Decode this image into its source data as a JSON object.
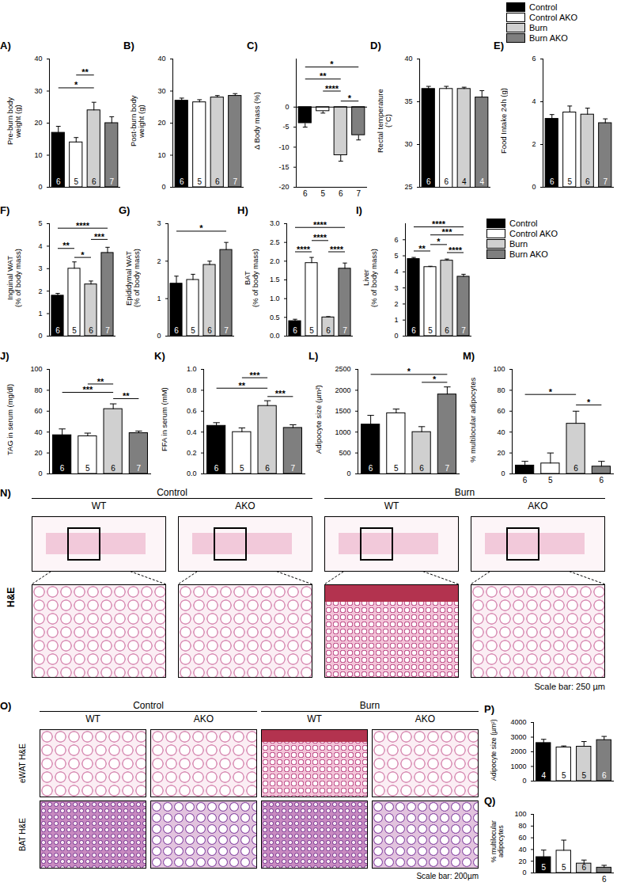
{
  "chart_data": [
    {
      "type": "bar",
      "title": "A)",
      "ylabel": "Pre-burn body\nweight (g)",
      "categories": [
        "Control",
        "Control AKO",
        "Burn",
        "Burn AKO"
      ],
      "colors": [
        "#000000",
        "#ffffff",
        "#d0d0d0",
        "#7f7f7f"
      ],
      "values": [
        17,
        14,
        24,
        20
      ],
      "errors": [
        2,
        1.5,
        2.5,
        2
      ],
      "n": [
        6,
        5,
        6,
        7
      ],
      "ylim": [
        0,
        40
      ],
      "yticks": [
        0,
        10,
        20,
        30,
        40
      ],
      "annotations": [
        {
          "from": 0,
          "to": 2,
          "y": 31,
          "text": "*"
        },
        {
          "from": 1,
          "to": 2,
          "y": 35,
          "text": "**"
        }
      ],
      "tick_labels": "y"
    },
    {
      "type": "bar",
      "title": "B)",
      "ylabel": "Post-burn body\nweight (g)",
      "categories": [
        "Control",
        "Control AKO",
        "Burn",
        "Burn AKO"
      ],
      "colors": [
        "#000000",
        "#ffffff",
        "#d0d0d0",
        "#7f7f7f"
      ],
      "values": [
        27,
        26.5,
        28,
        28.5
      ],
      "errors": [
        0.8,
        0.8,
        0.6,
        0.7
      ],
      "n": [
        6,
        5,
        6,
        7
      ],
      "ylim": [
        0,
        40
      ],
      "yticks": [
        0,
        10,
        20,
        30,
        40
      ],
      "annotations": [],
      "tick_labels": "y"
    },
    {
      "type": "bar",
      "title": "C)",
      "ylabel": "Δ Body mass (%)",
      "categories": [
        "Control",
        "Control AKO",
        "Burn",
        "Burn AKO"
      ],
      "colors": [
        "#000000",
        "#ffffff",
        "#d0d0d0",
        "#7f7f7f"
      ],
      "values": [
        -4,
        -1,
        -12,
        -7
      ],
      "errors": [
        1,
        0.5,
        1.5,
        1.2
      ],
      "n": [
        6,
        5,
        6,
        7
      ],
      "ylim": [
        -20,
        12
      ],
      "yticks": [
        -20,
        -15,
        -10,
        -5,
        0
      ],
      "annotations": [
        {
          "from": 0,
          "to": 3,
          "y": 10,
          "text": "*"
        },
        {
          "from": 0,
          "to": 2,
          "y": 7,
          "text": "**"
        },
        {
          "from": 1,
          "to": 2,
          "y": 4,
          "text": "****"
        },
        {
          "from": 2,
          "to": 3,
          "y": 1.5,
          "text": "*"
        }
      ],
      "tick_labels": "y"
    },
    {
      "type": "bar",
      "title": "D)",
      "ylabel": "Rectal temperature\n(°C)",
      "categories": [
        "Control",
        "Control AKO",
        "Burn",
        "Burn AKO"
      ],
      "colors": [
        "#000000",
        "#ffffff",
        "#d0d0d0",
        "#7f7f7f"
      ],
      "values": [
        36.5,
        36.5,
        36.5,
        35.5
      ],
      "errors": [
        0.3,
        0.3,
        0.2,
        0.8
      ],
      "n": [
        6,
        6,
        4,
        4
      ],
      "ylim": [
        25,
        40
      ],
      "yticks": [
        25,
        30,
        35,
        40
      ],
      "annotations": [],
      "tick_labels": "y"
    },
    {
      "type": "bar",
      "title": "E)",
      "ylabel": "Food Intake 24h (g)",
      "categories": [
        "Control",
        "Control AKO",
        "Burn",
        "Burn AKO"
      ],
      "colors": [
        "#000000",
        "#ffffff",
        "#d0d0d0",
        "#7f7f7f"
      ],
      "values": [
        3.2,
        3.5,
        3.4,
        3.0
      ],
      "errors": [
        0.2,
        0.3,
        0.3,
        0.2
      ],
      "n": [
        6,
        5,
        6,
        7
      ],
      "ylim": [
        0,
        6
      ],
      "yticks": [
        0,
        2,
        4,
        6
      ],
      "annotations": [],
      "tick_labels": "y"
    },
    {
      "type": "bar",
      "title": "F)",
      "ylabel": "Inguinal WAT\n(% of body mass)",
      "categories": [
        "Control",
        "Control AKO",
        "Burn",
        "Burn AKO"
      ],
      "colors": [
        "#000000",
        "#ffffff",
        "#d0d0d0",
        "#7f7f7f"
      ],
      "values": [
        1.8,
        3.0,
        2.3,
        3.7
      ],
      "errors": [
        0.1,
        0.3,
        0.15,
        0.25
      ],
      "n": [
        6,
        5,
        6,
        7
      ],
      "ylim": [
        0,
        5
      ],
      "yticks": [
        0,
        1,
        2,
        3,
        4,
        5
      ],
      "annotations": [
        {
          "from": 0,
          "to": 3,
          "y": 4.8,
          "text": "****"
        },
        {
          "from": 0,
          "to": 1,
          "y": 3.9,
          "text": "**"
        },
        {
          "from": 1,
          "to": 2,
          "y": 3.5,
          "text": "*"
        },
        {
          "from": 2,
          "to": 3,
          "y": 4.3,
          "text": "***"
        }
      ],
      "tick_labels": "y"
    },
    {
      "type": "bar",
      "title": "G)",
      "ylabel": "Epididymal WAT\n(% of body mass)",
      "categories": [
        "Control",
        "Control AKO",
        "Burn",
        "Burn AKO"
      ],
      "colors": [
        "#000000",
        "#ffffff",
        "#d0d0d0",
        "#7f7f7f"
      ],
      "values": [
        1.4,
        1.5,
        1.9,
        2.3
      ],
      "errors": [
        0.2,
        0.15,
        0.1,
        0.2
      ],
      "n": [
        6,
        5,
        6,
        7
      ],
      "ylim": [
        0,
        3
      ],
      "yticks": [
        0,
        1,
        2,
        3
      ],
      "annotations": [
        {
          "from": 0,
          "to": 3,
          "y": 2.8,
          "text": "*"
        }
      ],
      "tick_labels": "y"
    },
    {
      "type": "bar",
      "title": "H)",
      "ylabel": "BAT\n(% of body mass)",
      "categories": [
        "Control",
        "Control AKO",
        "Burn",
        "Burn AKO"
      ],
      "colors": [
        "#000000",
        "#ffffff",
        "#d0d0d0",
        "#7f7f7f"
      ],
      "values": [
        0.4,
        1.95,
        0.5,
        1.8
      ],
      "errors": [
        0.05,
        0.15,
        0.02,
        0.15
      ],
      "n": [
        6,
        5,
        6,
        7
      ],
      "ylim": [
        0,
        3
      ],
      "yticks": [
        {
          "value": 0,
          "label": "0.0"
        },
        0.5,
        {
          "value": 1,
          "label": "1.0"
        },
        1.5,
        {
          "value": 2,
          "label": "2.0"
        },
        2.5,
        {
          "value": 3,
          "label": "3.0"
        }
      ],
      "annotations": [
        {
          "from": 0,
          "to": 3,
          "y": 2.9,
          "text": "****"
        },
        {
          "from": 0,
          "to": 1,
          "y": 2.25,
          "text": "****"
        },
        {
          "from": 1,
          "to": 2,
          "y": 2.55,
          "text": "****"
        },
        {
          "from": 2,
          "to": 3,
          "y": 2.25,
          "text": "****"
        }
      ],
      "tick_labels": "y"
    },
    {
      "type": "bar",
      "title": "I)",
      "ylabel": "Liver\n(% of body mass)",
      "categories": [
        "Control",
        "Control AKO",
        "Burn",
        "Burn AKO"
      ],
      "colors": [
        "#000000",
        "#ffffff",
        "#d0d0d0",
        "#7f7f7f"
      ],
      "values": [
        4.8,
        4.3,
        4.7,
        3.7
      ],
      "errors": [
        0.1,
        0.05,
        0.1,
        0.15
      ],
      "n": [
        6,
        5,
        6,
        7
      ],
      "ylim": [
        0,
        7
      ],
      "yticks": [
        0,
        1,
        2,
        3,
        4,
        5,
        6
      ],
      "annotations": [
        {
          "from": 0,
          "to": 3,
          "y": 6.8,
          "text": "****"
        },
        {
          "from": 1,
          "to": 3,
          "y": 6.3,
          "text": "***"
        },
        {
          "from": 0,
          "to": 1,
          "y": 5.3,
          "text": "**"
        },
        {
          "from": 1,
          "to": 2,
          "y": 5.7,
          "text": "*"
        },
        {
          "from": 2,
          "to": 3,
          "y": 5.2,
          "text": "****"
        }
      ],
      "tick_labels": "y"
    },
    {
      "type": "bar",
      "title": "J)",
      "ylabel": "TAG in serum (mg/dl)",
      "categories": [
        "Control",
        "Control AKO",
        "Burn",
        "Burn AKO"
      ],
      "colors": [
        "#000000",
        "#ffffff",
        "#d0d0d0",
        "#7f7f7f"
      ],
      "values": [
        37,
        36,
        62,
        39
      ],
      "errors": [
        6,
        3,
        5,
        2
      ],
      "n": [
        6,
        5,
        6,
        7
      ],
      "ylim": [
        0,
        100
      ],
      "yticks": [
        0,
        20,
        40,
        60,
        80,
        100
      ],
      "annotations": [
        {
          "from": 1,
          "to": 2,
          "y": 86,
          "text": "**"
        },
        {
          "from": 0,
          "to": 2,
          "y": 78,
          "text": "***"
        },
        {
          "from": 2,
          "to": 3,
          "y": 72,
          "text": "**"
        }
      ],
      "tick_labels": "y"
    },
    {
      "type": "bar",
      "title": "K)",
      "ylabel": "FFA in serum (mM)",
      "categories": [
        "Control",
        "Control AKO",
        "Burn",
        "Burn AKO"
      ],
      "colors": [
        "#000000",
        "#ffffff",
        "#d0d0d0",
        "#7f7f7f"
      ],
      "values": [
        0.46,
        0.4,
        0.65,
        0.44
      ],
      "errors": [
        0.03,
        0.04,
        0.05,
        0.03
      ],
      "n": [
        6,
        5,
        6,
        7
      ],
      "ylim": [
        0,
        1
      ],
      "yticks": [
        {
          "value": 0,
          "label": "0.0"
        },
        0.2,
        0.4,
        0.6,
        0.8,
        {
          "value": 1,
          "label": "1.0"
        }
      ],
      "annotations": [
        {
          "from": 1,
          "to": 2,
          "y": 0.92,
          "text": "***"
        },
        {
          "from": 0,
          "to": 2,
          "y": 0.82,
          "text": "**"
        },
        {
          "from": 2,
          "to": 3,
          "y": 0.74,
          "text": "***"
        }
      ],
      "tick_labels": "y"
    },
    {
      "type": "bar",
      "title": "L)",
      "ylabel": "Adipocyte size (µm²)",
      "categories": [
        "Control",
        "Control AKO",
        "Burn",
        "Burn AKO"
      ],
      "colors": [
        "#000000",
        "#ffffff",
        "#d0d0d0",
        "#7f7f7f"
      ],
      "values": [
        1180,
        1450,
        1000,
        1900
      ],
      "errors": [
        220,
        100,
        130,
        180
      ],
      "n": [
        6,
        5,
        6,
        7
      ],
      "ylim": [
        0,
        2500
      ],
      "yticks": [
        0,
        500,
        1000,
        1500,
        2000,
        2500
      ],
      "annotations": [
        {
          "from": 0,
          "to": 3,
          "y": 2380,
          "text": "*"
        },
        {
          "from": 2,
          "to": 3,
          "y": 2190,
          "text": "*"
        }
      ],
      "tick_labels": "y"
    },
    {
      "type": "bar",
      "title": "M)",
      "ylabel": "% multilocular adipocytes",
      "categories": [
        "Control",
        "Control AKO",
        "Burn",
        "Burn AKO"
      ],
      "colors": [
        "#000000",
        "#ffffff",
        "#d0d0d0",
        "#7f7f7f"
      ],
      "values": [
        8,
        10,
        48,
        7
      ],
      "errors": [
        4,
        10,
        12,
        5
      ],
      "n": [
        6,
        5,
        6,
        6
      ],
      "ylim": [
        0,
        100
      ],
      "yticks": [
        0,
        20,
        40,
        60,
        80,
        100
      ],
      "annotations": [
        {
          "from": 0,
          "to": 2,
          "y": 76,
          "text": "*"
        },
        {
          "from": 2,
          "to": 3,
          "y": 66,
          "text": "*"
        }
      ],
      "tick_labels": "y"
    },
    {
      "type": "bar",
      "title": "P)",
      "ylabel": "Adipocyte size (µm²)",
      "categories": [
        "Control",
        "Control AKO",
        "Burn",
        "Burn AKO"
      ],
      "colors": [
        "#000000",
        "#ffffff",
        "#d0d0d0",
        "#7f7f7f"
      ],
      "values": [
        2600,
        2300,
        2350,
        2800
      ],
      "errors": [
        250,
        100,
        350,
        250
      ],
      "n": [
        4,
        5,
        5,
        6
      ],
      "ylim": [
        0,
        4000
      ],
      "yticks": [
        0,
        1000,
        2000,
        3000,
        4000
      ],
      "annotations": [],
      "tick_labels": "y"
    },
    {
      "type": "bar",
      "title": "Q)",
      "ylabel": "% multilocular\nadipocytes",
      "categories": [
        "Control",
        "Control AKO",
        "Burn",
        "Burn AKO"
      ],
      "colors": [
        "#000000",
        "#ffffff",
        "#d0d0d0",
        "#7f7f7f"
      ],
      "values": [
        27,
        38,
        16,
        9
      ],
      "errors": [
        12,
        18,
        6,
        4
      ],
      "n": [
        5,
        5,
        6,
        6
      ],
      "ylim": [
        0,
        100
      ],
      "yticks": [
        0,
        20,
        40,
        60,
        80,
        100
      ],
      "annotations": [],
      "tick_labels": "y"
    }
  ],
  "images": [
    {
      "label": "N)",
      "groups": [
        "Control",
        "Burn"
      ],
      "columns": [
        "WT",
        "AKO",
        "WT",
        "AKO"
      ],
      "rows": [
        "H&E"
      ],
      "scale_bar": "Scale bar: 250 µm"
    },
    {
      "label": "O)",
      "groups": [
        "Control",
        "Burn"
      ],
      "columns": [
        "WT",
        "AKO",
        "WT",
        "AKO"
      ],
      "rows": [
        "eWAT H&E",
        "BAT H&E"
      ],
      "scale_bar": "Scale bar: 200µm"
    }
  ]
}
